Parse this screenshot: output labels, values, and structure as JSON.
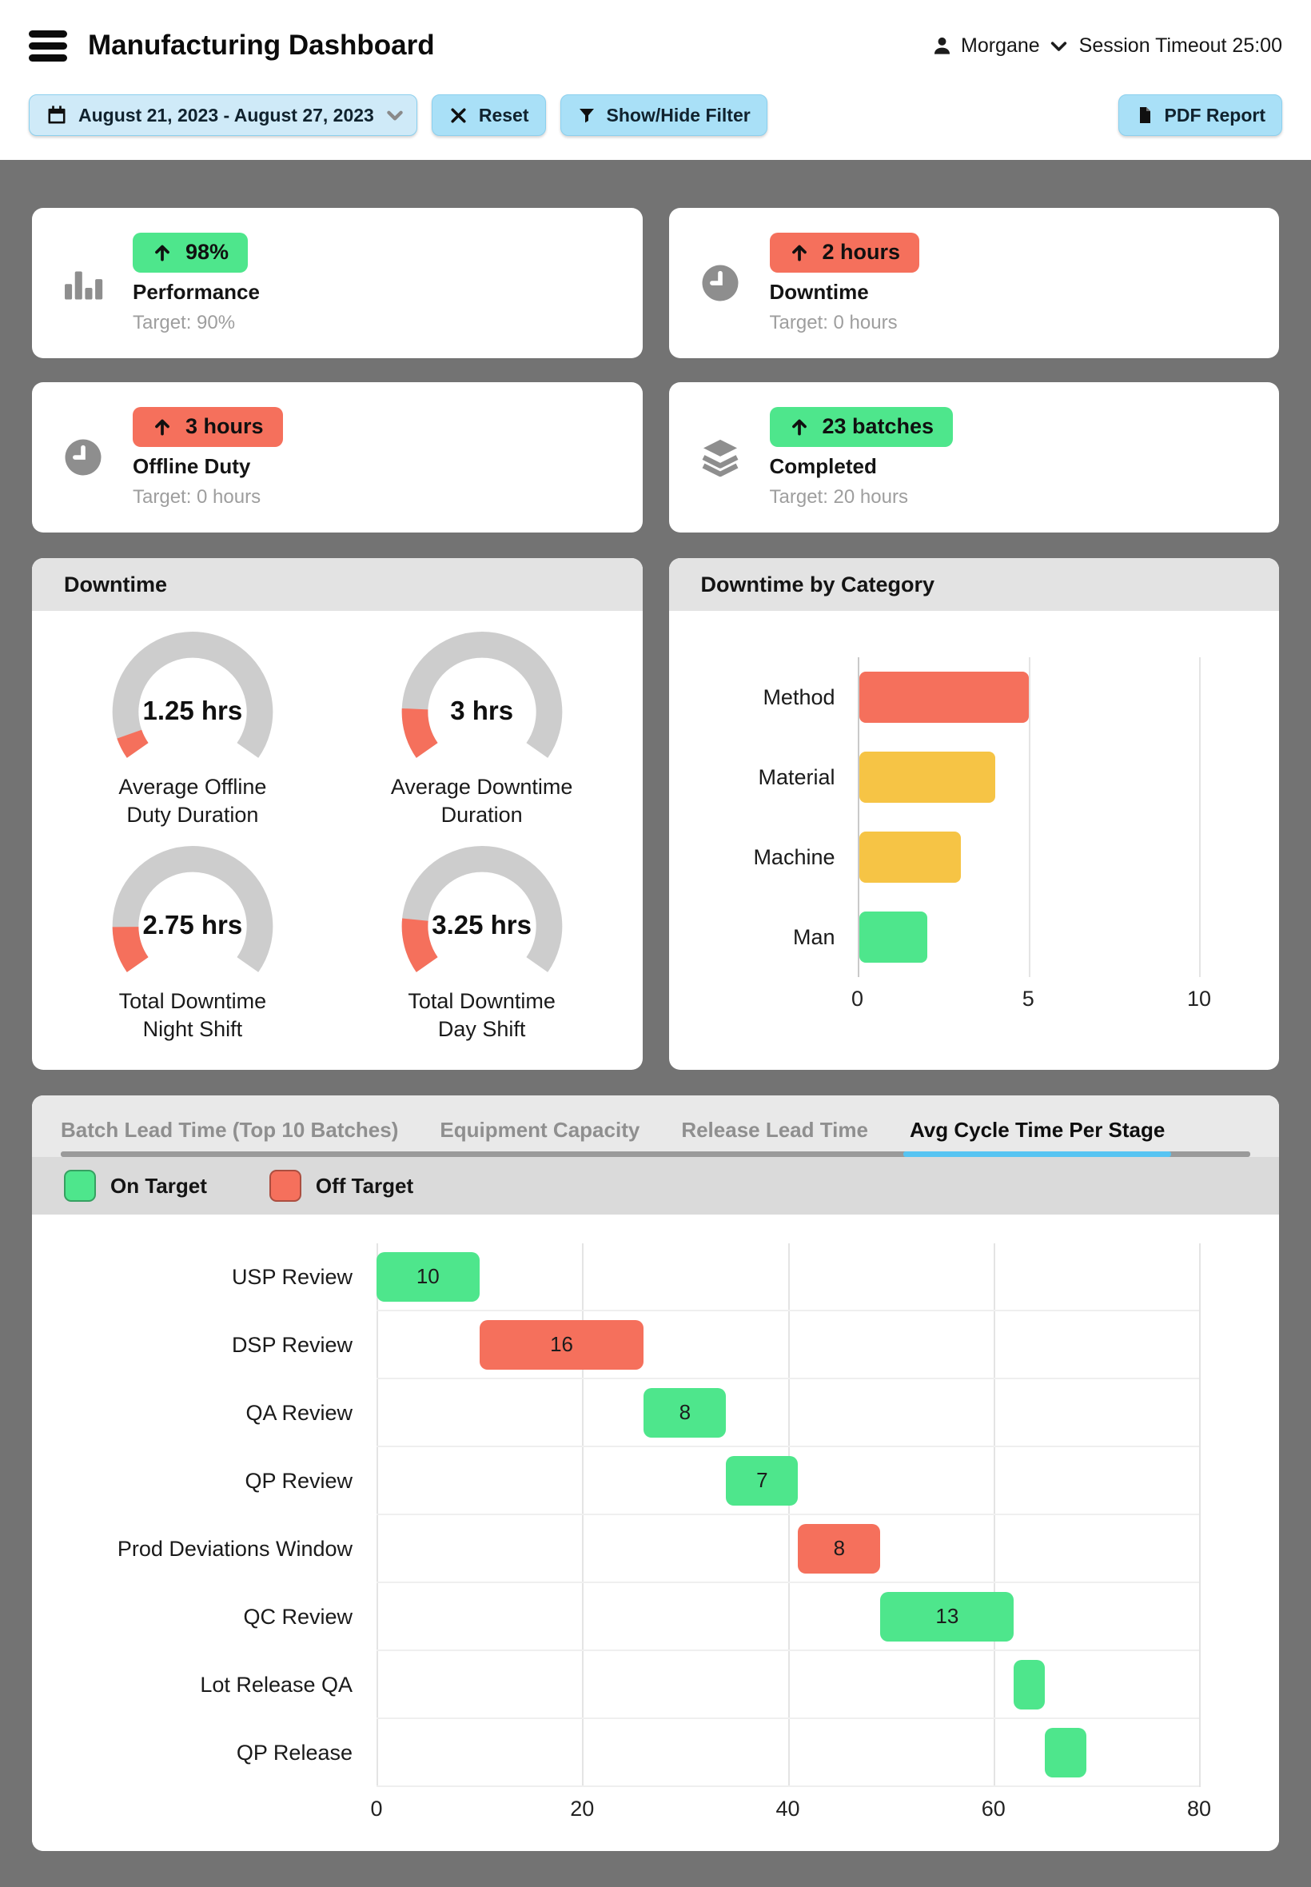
{
  "colors": {
    "green": "#4ee68c",
    "red": "#f5705c",
    "yellow": "#f6c445",
    "blue": "#57c4f2",
    "gauge_track": "#cdcdcd"
  },
  "header": {
    "title": "Manufacturing Dashboard",
    "user": "Morgane",
    "session_timeout": "Session Timeout 25:00"
  },
  "toolbar": {
    "date_range": "August 21, 2023 - August 27, 2023",
    "reset_label": "Reset",
    "filter_label": "Show/Hide Filter",
    "pdf_label": "PDF Report"
  },
  "kpis": [
    {
      "badge": "98%",
      "direction": "up",
      "status": "green",
      "label": "Performance",
      "target": "Target: 90%",
      "icon": "bar-chart-icon"
    },
    {
      "badge": "2 hours",
      "direction": "up",
      "status": "red",
      "label": "Downtime",
      "target": "Target: 0 hours",
      "icon": "clock-icon"
    },
    {
      "badge": "3 hours",
      "direction": "up",
      "status": "red",
      "label": "Offline Duty",
      "target": "Target: 0 hours",
      "icon": "clock-icon"
    },
    {
      "badge": "23 batches",
      "direction": "up",
      "status": "green",
      "label": "Completed",
      "target": "Target: 20 hours",
      "icon": "layers-icon"
    }
  ],
  "bottom": {
    "tabs": [
      {
        "label": "Batch Lead Time (Top 10 Batches)",
        "active": false
      },
      {
        "label": "Equipment Capacity",
        "active": false
      },
      {
        "label": "Release Lead Time",
        "active": false
      },
      {
        "label": "Avg Cycle Time Per Stage",
        "active": true
      }
    ],
    "legend": [
      {
        "label": "On Target",
        "status": "green"
      },
      {
        "label": "Off Target",
        "status": "red"
      }
    ]
  },
  "chart_data": [
    {
      "type": "gauge",
      "title": "Downtime",
      "max": 20,
      "unit": "hrs",
      "gauges": [
        {
          "value": 1.25,
          "display": "1.25 hrs",
          "label": "Average Offline Duty Duration"
        },
        {
          "value": 3,
          "display": "3 hrs",
          "label": "Average Downtime Duration"
        },
        {
          "value": 2.75,
          "display": "2.75 hrs",
          "label": "Total Downtime Night Shift"
        },
        {
          "value": 3.25,
          "display": "3.25 hrs",
          "label": "Total Downtime Day Shift"
        }
      ]
    },
    {
      "type": "bar",
      "title": "Downtime by Category",
      "orientation": "horizontal",
      "categories": [
        "Method",
        "Material",
        "Machine",
        "Man"
      ],
      "values": [
        5,
        4,
        3,
        2
      ],
      "bar_colors": [
        "red",
        "yellow",
        "yellow",
        "green"
      ],
      "xlim": [
        0,
        10
      ],
      "xticks": [
        0,
        5,
        10
      ],
      "grid": true
    },
    {
      "type": "bar",
      "title": "Avg Cycle Time Per Stage",
      "orientation": "horizontal-cascade",
      "xlim": [
        0,
        80
      ],
      "xticks": [
        0,
        20,
        40,
        60,
        80
      ],
      "grid": true,
      "bars": [
        {
          "category": "USP Review",
          "start": 0,
          "value": 10,
          "label": "10",
          "status": "green"
        },
        {
          "category": "DSP Review",
          "start": 10,
          "value": 16,
          "label": "16",
          "status": "red"
        },
        {
          "category": "QA Review",
          "start": 26,
          "value": 8,
          "label": "8",
          "status": "green"
        },
        {
          "category": "QP Review",
          "start": 34,
          "value": 7,
          "label": "7",
          "status": "green"
        },
        {
          "category": "Prod Deviations Window",
          "start": 41,
          "value": 8,
          "label": "8",
          "status": "red"
        },
        {
          "category": "QC Review",
          "start": 49,
          "value": 13,
          "label": "13",
          "status": "green"
        },
        {
          "category": "Lot Release QA",
          "start": 62,
          "value": 3,
          "label": "",
          "status": "green"
        },
        {
          "category": "QP Release",
          "start": 65,
          "value": 4,
          "label": "",
          "status": "green"
        }
      ]
    }
  ]
}
